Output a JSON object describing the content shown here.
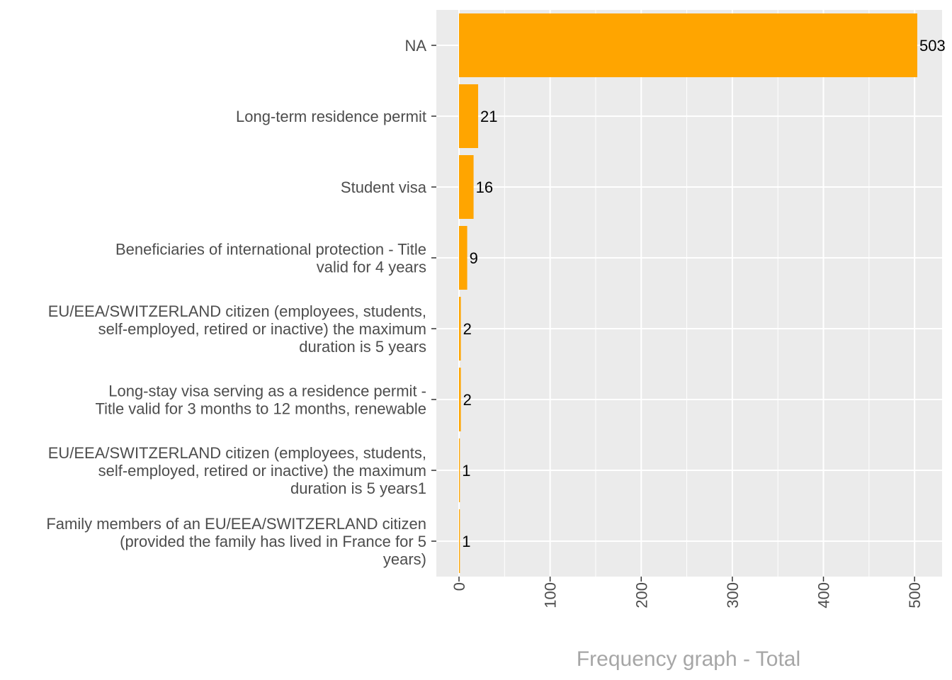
{
  "chart_data": {
    "type": "bar",
    "orientation": "horizontal",
    "categories": [
      "NA",
      "Long-term residence permit",
      "Student visa",
      "Beneficiaries of international protection - Title valid for 4 years",
      "EU/EEA/SWITZERLAND citizen (employees, students, self-employed, retired or inactive) the maximum duration is 5 years",
      "Long-stay visa serving as a residence permit - Title valid for 3 months to 12 months, renewable",
      "EU/EEA/SWITZERLAND citizen (employees, students, self-employed, retired or inactive) the maximum duration is 5 years1",
      "Family members of an EU/EEA/SWITZERLAND citizen (provided the family has lived in France for 5 years)"
    ],
    "category_lines": [
      [
        "NA"
      ],
      [
        "Long-term residence permit"
      ],
      [
        "Student visa"
      ],
      [
        "Beneficiaries of international protection - Title",
        "valid for 4 years"
      ],
      [
        "EU/EEA/SWITZERLAND citizen (employees, students,",
        "self-employed, retired or inactive) the maximum",
        "duration is 5 years"
      ],
      [
        "Long-stay visa serving as a residence permit -",
        "Title valid for 3 months to 12 months, renewable"
      ],
      [
        "EU/EEA/SWITZERLAND citizen (employees, students,",
        "self-employed, retired or inactive) the maximum",
        "duration is 5 years1"
      ],
      [
        "Family members of an EU/EEA/SWITZERLAND citizen",
        "(provided the family has lived in France for 5",
        "years)"
      ]
    ],
    "values": [
      503,
      21,
      16,
      9,
      2,
      2,
      1,
      1
    ],
    "data_labels": [
      "503",
      "21",
      "16",
      "9",
      "2",
      "2",
      "1",
      "1"
    ],
    "x_ticks": [
      0,
      100,
      200,
      300,
      400,
      500
    ],
    "x_tick_labels": [
      "0",
      "100",
      "200",
      "300",
      "400",
      "500"
    ],
    "xlim": [
      0,
      528
    ],
    "xlabel": "Frequency graph - Total",
    "ylabel": "",
    "bar_color": "#FFA500",
    "panel_color": "#EBEBEB",
    "grid": true
  }
}
